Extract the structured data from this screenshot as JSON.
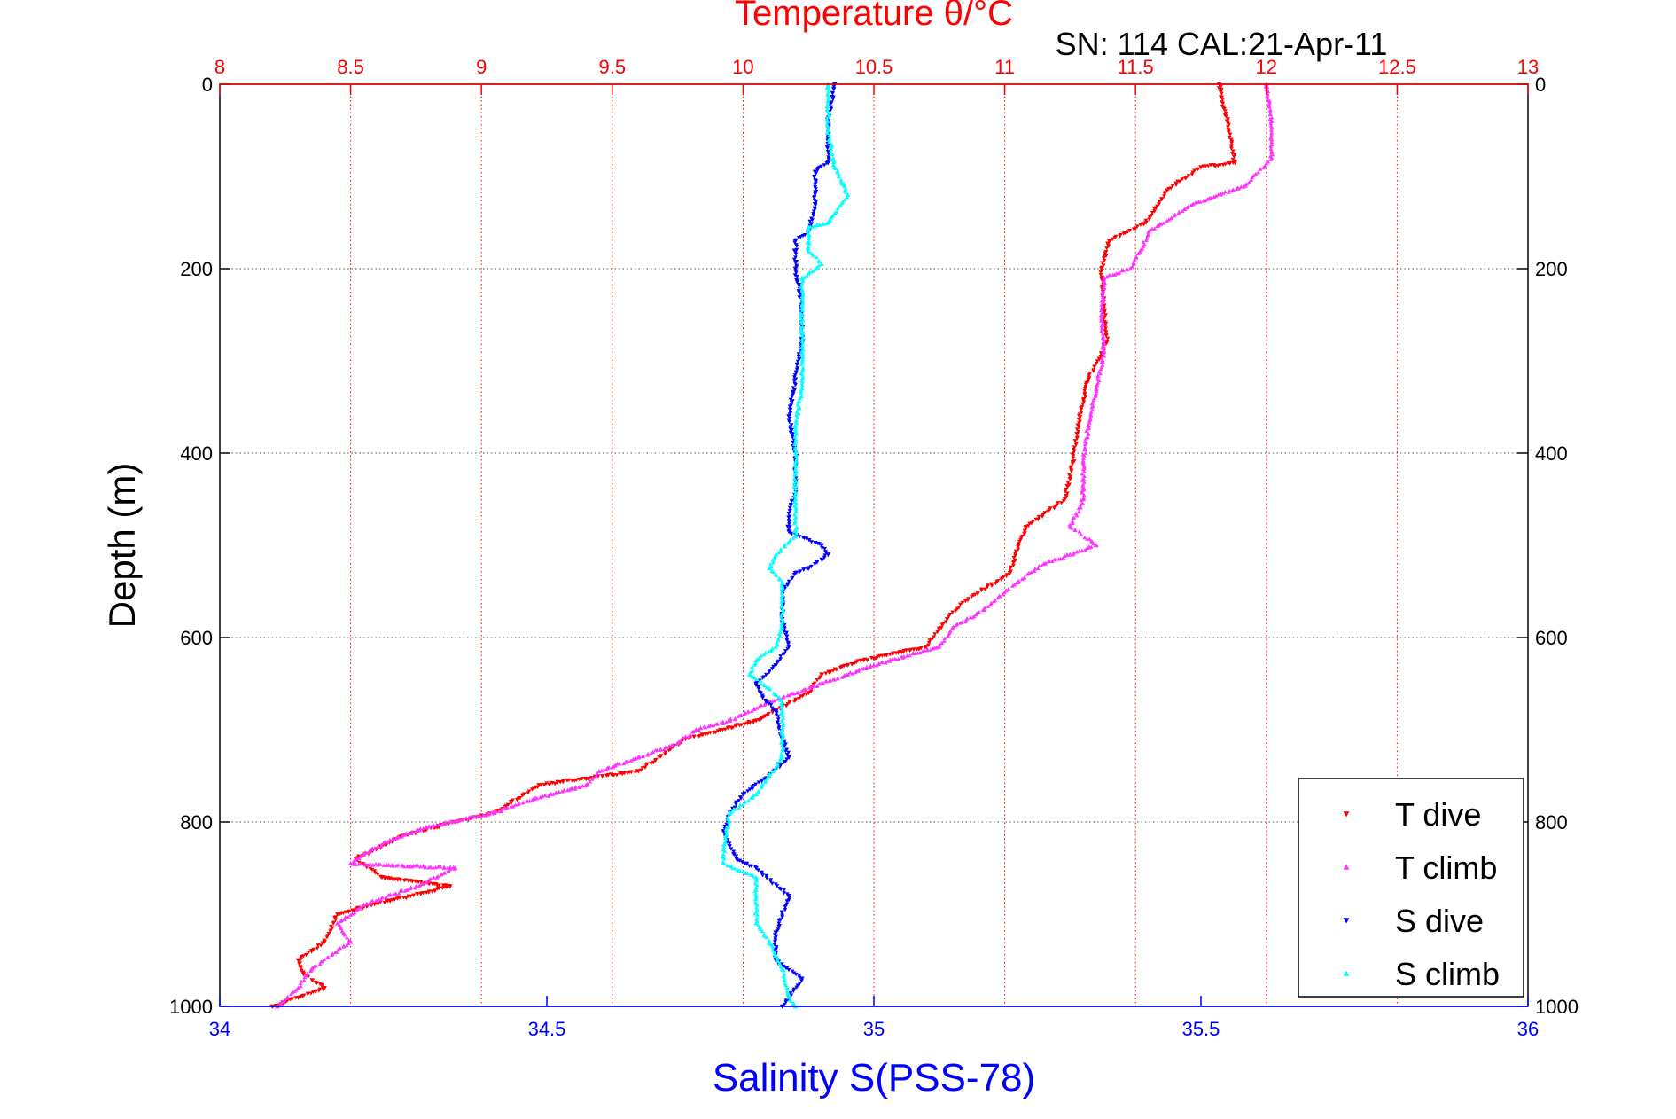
{
  "chart_data": {
    "type": "scatter",
    "title": "Temperature θ/°C",
    "subtitle": "SN: 114  CAL:21-Apr-11",
    "ylabel": "Depth (m)",
    "xlabel_bottom": "Salinity S(PSS-78)",
    "xlabel_top": "Temperature θ/°C",
    "y_reversed": true,
    "ylim": [
      0,
      1000
    ],
    "yticks": [
      "0",
      "200",
      "400",
      "600",
      "800",
      "1000"
    ],
    "x_top": {
      "lim": [
        8,
        13
      ],
      "ticks": [
        "8",
        "8.5",
        "9",
        "9.5",
        "10",
        "10.5",
        "11",
        "11.5",
        "12",
        "12.5",
        "13"
      ],
      "color": "#ff0000"
    },
    "x_bottom": {
      "lim": [
        34,
        36
      ],
      "ticks": [
        "34",
        "34.5",
        "35",
        "35.5",
        "36"
      ],
      "color": "#0000ff"
    },
    "grid": true,
    "legend_position": "bottom-right",
    "legend": [
      "T dive",
      "T climb",
      "S dive",
      "S climb"
    ],
    "series": [
      {
        "name": "T dive",
        "axis": "top",
        "color": "#ff0000",
        "marker": "down-triangle",
        "points": [
          [
            11.82,
            0
          ],
          [
            11.85,
            40
          ],
          [
            11.88,
            85
          ],
          [
            11.75,
            90
          ],
          [
            11.62,
            115
          ],
          [
            11.54,
            150
          ],
          [
            11.4,
            170
          ],
          [
            11.37,
            200
          ],
          [
            11.38,
            240
          ],
          [
            11.39,
            280
          ],
          [
            11.32,
            320
          ],
          [
            11.28,
            370
          ],
          [
            11.26,
            410
          ],
          [
            11.23,
            450
          ],
          [
            11.08,
            480
          ],
          [
            11.02,
            530
          ],
          [
            10.85,
            560
          ],
          [
            10.78,
            580
          ],
          [
            10.7,
            610
          ],
          [
            10.45,
            625
          ],
          [
            10.3,
            640
          ],
          [
            10.25,
            660
          ],
          [
            10.05,
            690
          ],
          [
            9.78,
            710
          ],
          [
            9.6,
            745
          ],
          [
            9.22,
            760
          ],
          [
            9.05,
            790
          ],
          [
            8.9,
            800
          ],
          [
            8.7,
            815
          ],
          [
            8.52,
            840
          ],
          [
            8.62,
            860
          ],
          [
            8.88,
            870
          ],
          [
            8.58,
            890
          ],
          [
            8.45,
            900
          ],
          [
            8.4,
            930
          ],
          [
            8.3,
            950
          ],
          [
            8.32,
            965
          ],
          [
            8.4,
            980
          ],
          [
            8.2,
            1000
          ]
        ]
      },
      {
        "name": "T climb",
        "axis": "top",
        "color": "#ff33ff",
        "marker": "up-triangle",
        "points": [
          [
            12.0,
            0
          ],
          [
            12.02,
            40
          ],
          [
            12.02,
            80
          ],
          [
            11.92,
            110
          ],
          [
            11.72,
            130
          ],
          [
            11.55,
            160
          ],
          [
            11.52,
            180
          ],
          [
            11.48,
            200
          ],
          [
            11.38,
            210
          ],
          [
            11.37,
            250
          ],
          [
            11.38,
            290
          ],
          [
            11.35,
            330
          ],
          [
            11.32,
            370
          ],
          [
            11.3,
            410
          ],
          [
            11.3,
            450
          ],
          [
            11.25,
            480
          ],
          [
            11.35,
            500
          ],
          [
            11.25,
            510
          ],
          [
            11.15,
            520
          ],
          [
            11.05,
            540
          ],
          [
            10.98,
            555
          ],
          [
            10.92,
            570
          ],
          [
            10.8,
            590
          ],
          [
            10.75,
            610
          ],
          [
            10.5,
            630
          ],
          [
            10.3,
            650
          ],
          [
            10.1,
            670
          ],
          [
            9.95,
            690
          ],
          [
            9.82,
            700
          ],
          [
            9.75,
            715
          ],
          [
            9.6,
            730
          ],
          [
            9.45,
            745
          ],
          [
            9.4,
            760
          ],
          [
            9.2,
            775
          ],
          [
            9.05,
            790
          ],
          [
            8.8,
            805
          ],
          [
            8.65,
            820
          ],
          [
            8.55,
            835
          ],
          [
            8.5,
            845
          ],
          [
            8.9,
            850
          ],
          [
            8.75,
            870
          ],
          [
            8.55,
            890
          ],
          [
            8.45,
            910
          ],
          [
            8.5,
            930
          ],
          [
            8.35,
            960
          ],
          [
            8.3,
            980
          ],
          [
            8.22,
            1000
          ]
        ]
      },
      {
        "name": "S dive",
        "axis": "bottom",
        "color": "#0000ff",
        "marker": "down-triangle",
        "points": [
          [
            34.94,
            0
          ],
          [
            34.93,
            40
          ],
          [
            34.93,
            85
          ],
          [
            34.91,
            95
          ],
          [
            34.91,
            130
          ],
          [
            34.9,
            160
          ],
          [
            34.88,
            170
          ],
          [
            34.88,
            200
          ],
          [
            34.89,
            240
          ],
          [
            34.89,
            280
          ],
          [
            34.88,
            320
          ],
          [
            34.87,
            360
          ],
          [
            34.88,
            400
          ],
          [
            34.88,
            440
          ],
          [
            34.87,
            470
          ],
          [
            34.87,
            485
          ],
          [
            34.92,
            500
          ],
          [
            34.93,
            510
          ],
          [
            34.9,
            525
          ],
          [
            34.88,
            530
          ],
          [
            34.86,
            550
          ],
          [
            34.86,
            580
          ],
          [
            34.87,
            610
          ],
          [
            34.85,
            630
          ],
          [
            34.82,
            650
          ],
          [
            34.83,
            665
          ],
          [
            34.85,
            680
          ],
          [
            34.86,
            710
          ],
          [
            34.87,
            730
          ],
          [
            34.84,
            750
          ],
          [
            34.8,
            770
          ],
          [
            34.78,
            790
          ],
          [
            34.77,
            810
          ],
          [
            34.79,
            840
          ],
          [
            34.82,
            850
          ],
          [
            34.87,
            880
          ],
          [
            34.85,
            920
          ],
          [
            34.85,
            950
          ],
          [
            34.89,
            970
          ],
          [
            34.87,
            990
          ],
          [
            34.86,
            1000
          ]
        ]
      },
      {
        "name": "S climb",
        "axis": "bottom",
        "color": "#00ffff",
        "marker": "up-triangle",
        "points": [
          [
            34.93,
            0
          ],
          [
            34.93,
            50
          ],
          [
            34.94,
            90
          ],
          [
            34.96,
            120
          ],
          [
            34.94,
            140
          ],
          [
            34.93,
            150
          ],
          [
            34.9,
            155
          ],
          [
            34.9,
            180
          ],
          [
            34.92,
            195
          ],
          [
            34.89,
            210
          ],
          [
            34.89,
            250
          ],
          [
            34.89,
            290
          ],
          [
            34.89,
            330
          ],
          [
            34.88,
            370
          ],
          [
            34.88,
            410
          ],
          [
            34.88,
            450
          ],
          [
            34.88,
            490
          ],
          [
            34.85,
            510
          ],
          [
            34.84,
            525
          ],
          [
            34.86,
            540
          ],
          [
            34.86,
            560
          ],
          [
            34.86,
            590
          ],
          [
            34.85,
            610
          ],
          [
            34.82,
            625
          ],
          [
            34.81,
            640
          ],
          [
            34.84,
            655
          ],
          [
            34.86,
            670
          ],
          [
            34.86,
            700
          ],
          [
            34.86,
            730
          ],
          [
            34.84,
            750
          ],
          [
            34.82,
            770
          ],
          [
            34.78,
            790
          ],
          [
            34.77,
            830
          ],
          [
            34.77,
            845
          ],
          [
            34.82,
            860
          ],
          [
            34.82,
            880
          ],
          [
            34.82,
            910
          ],
          [
            34.84,
            930
          ],
          [
            34.86,
            960
          ],
          [
            34.87,
            990
          ],
          [
            34.88,
            1000
          ]
        ]
      }
    ]
  }
}
